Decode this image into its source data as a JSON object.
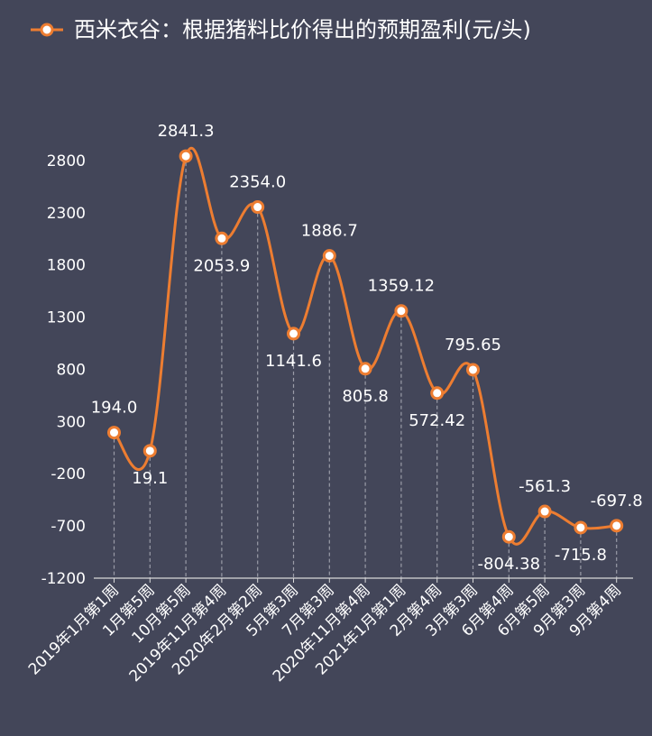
{
  "chart_data": {
    "type": "line",
    "title": "西米衣谷：根据猪料比价得出的预期盈利(元/头)",
    "legend": {
      "label": "西米衣谷：根据猪料比价得出的预期盈利(元/头)",
      "placement": "top-left"
    },
    "categories": [
      "2019年1月第1周",
      "1月第5周",
      "10月第5周",
      "2019年11月第4周",
      "2020年2月第2周",
      "5月第3周",
      "7月第3周",
      "2020年11月第4周",
      "2021年1月第1周",
      "2月第4周",
      "3月第3周",
      "6月第4周",
      "6月第5周",
      "9月第3周",
      "9月第4周"
    ],
    "values": [
      194.0,
      19.1,
      2841.3,
      2053.9,
      2354.0,
      1141.6,
      1886.7,
      805.8,
      1359.12,
      572.42,
      795.65,
      -804.38,
      -561.3,
      -715.8,
      -697.8
    ],
    "data_labels": [
      "194.0",
      "19.1",
      "2841.3",
      "2053.9",
      "2354.0",
      "1141.6",
      "1886.7",
      "805.8",
      "1359.12",
      "572.42",
      "795.65",
      "-804.38",
      "-561.3",
      "-715.8",
      "-697.8"
    ],
    "label_side": [
      "above",
      "below",
      "above",
      "below",
      "above",
      "below",
      "above",
      "below",
      "above",
      "below",
      "above",
      "below",
      "above",
      "below",
      "above"
    ],
    "y_ticks": [
      -1200,
      -700,
      -200,
      300,
      800,
      1300,
      1800,
      2300,
      2800
    ],
    "ylim": [
      -1200,
      3300
    ],
    "xlabel": "",
    "ylabel": "",
    "grid": false,
    "colors": {
      "background": "#434659",
      "line": "#ED7D31",
      "marker_fill": "#FFFFFF",
      "text": "#FFFFFF",
      "drop_line": "#9A9CA8",
      "axis": "#D9D9D9"
    }
  }
}
